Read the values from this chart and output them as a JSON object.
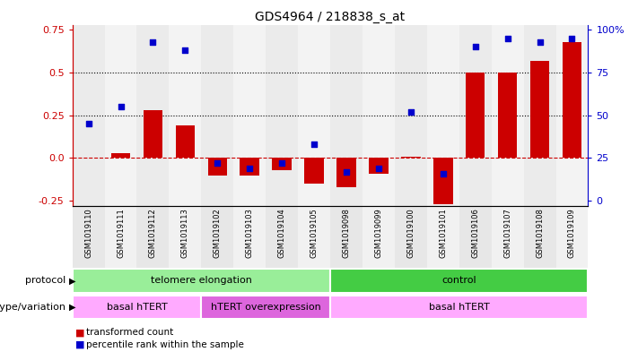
{
  "title": "GDS4964 / 218838_s_at",
  "samples": [
    "GSM1019110",
    "GSM1019111",
    "GSM1019112",
    "GSM1019113",
    "GSM1019102",
    "GSM1019103",
    "GSM1019104",
    "GSM1019105",
    "GSM1019098",
    "GSM1019099",
    "GSM1019100",
    "GSM1019101",
    "GSM1019106",
    "GSM1019107",
    "GSM1019108",
    "GSM1019109"
  ],
  "red_bars": [
    0.0,
    0.03,
    0.28,
    0.19,
    -0.1,
    -0.1,
    -0.07,
    -0.15,
    -0.17,
    -0.09,
    0.01,
    -0.27,
    0.5,
    0.5,
    0.57,
    0.68
  ],
  "blue_dots": [
    0.2,
    0.3,
    0.68,
    0.63,
    -0.03,
    -0.06,
    -0.03,
    0.08,
    -0.08,
    -0.06,
    0.27,
    -0.09,
    0.65,
    0.7,
    0.68,
    0.7
  ],
  "ylim": [
    -0.28,
    0.78
  ],
  "yticks_left": [
    -0.25,
    0.0,
    0.25,
    0.5,
    0.75
  ],
  "yticks_right": [
    0,
    25,
    50,
    75,
    100
  ],
  "hline_y": 0.0,
  "dotted_lines": [
    0.25,
    0.5
  ],
  "red_color": "#cc0000",
  "blue_color": "#0000cc",
  "dashed_line_color": "#cc0000",
  "protocol_groups": [
    {
      "label": "telomere elongation",
      "start": 0,
      "end": 8,
      "color": "#99ee99"
    },
    {
      "label": "control",
      "start": 8,
      "end": 16,
      "color": "#44cc44"
    }
  ],
  "genotype_groups": [
    {
      "label": "basal hTERT",
      "start": 0,
      "end": 4,
      "color": "#ffaaff"
    },
    {
      "label": "hTERT overexpression",
      "start": 4,
      "end": 8,
      "color": "#dd66dd"
    },
    {
      "label": "basal hTERT",
      "start": 8,
      "end": 16,
      "color": "#ffaaff"
    }
  ],
  "protocol_label": "protocol",
  "genotype_label": "genotype/variation",
  "legend_red": "transformed count",
  "legend_blue": "percentile rank within the sample",
  "bar_width": 0.6,
  "dot_size": 25,
  "right_axis_label": "%"
}
